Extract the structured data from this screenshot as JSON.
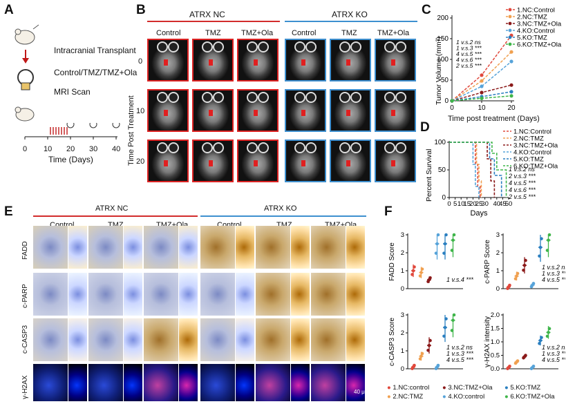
{
  "panels": {
    "A": "A",
    "B": "B",
    "C": "C",
    "D": "D",
    "E": "E",
    "F": "F"
  },
  "panelA": {
    "step1": "Intracranial Transplant",
    "step2": "Control/TMZ/TMZ+Ola",
    "step3": "MRI Scan",
    "timeline_ticks": [
      "0",
      "10",
      "20",
      "30",
      "40"
    ],
    "timeline_label": "Time (Days)"
  },
  "panelB": {
    "group_nc": "ATRX NC",
    "group_ko": "ATRX KO",
    "columns": [
      "Control",
      "TMZ",
      "TMZ+Ola",
      "Control",
      "TMZ",
      "TMZ+Ola"
    ],
    "rows": [
      "0",
      "10",
      "20"
    ],
    "ylabel": "Time Post Treatment"
  },
  "panelE": {
    "group_nc": "ATRX NC",
    "group_ko": "ATRX KO",
    "columns": [
      "Control",
      "TMZ",
      "TMZ+Ola",
      "Control",
      "TMZ",
      "TMZ+Ola"
    ],
    "rows": [
      "FADD",
      "c-PARP",
      "c-CASP3",
      "γ-H2AX"
    ],
    "scale": "40 μm"
  },
  "panelF_legend": [
    "1.NC:control",
    "2.NC:TMZ",
    "3.NC:TMZ+Ola",
    "4.KO:control",
    "5.KO:TMZ",
    "6.KO:TMZ+Ola"
  ],
  "colors": {
    "nc": "#d22b2b",
    "ko": "#3d8fcf",
    "s1": "#e0483c",
    "s2": "#f0a050",
    "s3": "#8b1a1a",
    "s4": "#56a3d9",
    "s5": "#2a7fc0",
    "s6": "#3fb54a"
  },
  "chart_data": [
    {
      "type": "line",
      "ylabel": "Tumor Volume (mm³)",
      "xlabel": "Time post treatment (Days)",
      "x": [
        0,
        10,
        20
      ],
      "ylim": [
        0,
        200
      ],
      "yticks": [
        0,
        50,
        100,
        150,
        200
      ],
      "series": [
        {
          "name": "1.NC:Control",
          "values": [
            0,
            62,
            158
          ]
        },
        {
          "name": "2.NC:TMZ",
          "values": [
            0,
            48,
            118
          ]
        },
        {
          "name": "3.NC:TMZ+Ola",
          "values": [
            0,
            20,
            38
          ]
        },
        {
          "name": "4.KO:Control",
          "values": [
            0,
            35,
            95
          ]
        },
        {
          "name": "5.KO:TMZ",
          "values": [
            0,
            10,
            22
          ]
        },
        {
          "name": "6.KO:TMZ+Ola",
          "values": [
            0,
            6,
            12
          ]
        }
      ],
      "stats": [
        [
          "1",
          "v.s.2",
          "ns"
        ],
        [
          "1",
          "v.s.3",
          "***"
        ],
        [
          "4",
          "v.s.5",
          "***"
        ],
        [
          "4",
          "v.s.6",
          "***"
        ],
        [
          "2",
          "v.s.5",
          "***"
        ]
      ]
    },
    {
      "type": "line",
      "ylabel": "Percent Survival",
      "xlabel": "Days",
      "xticks": [
        0,
        5,
        10,
        15,
        20,
        25,
        30,
        35,
        40,
        45,
        50
      ],
      "yticks": [
        0,
        50,
        100
      ],
      "series": [
        {
          "name": "1.NC:Control",
          "x": [
            0,
            20,
            22,
            24,
            26
          ],
          "values": [
            100,
            100,
            60,
            20,
            0
          ]
        },
        {
          "name": "2.NC:TMZ",
          "x": [
            0,
            21,
            23,
            25,
            27
          ],
          "values": [
            100,
            100,
            60,
            30,
            0
          ]
        },
        {
          "name": "3.NC:TMZ+Ola",
          "x": [
            0,
            29,
            32,
            35,
            38
          ],
          "values": [
            100,
            100,
            70,
            30,
            0
          ]
        },
        {
          "name": "4.KO:Control",
          "x": [
            0,
            18,
            20,
            22,
            25
          ],
          "values": [
            100,
            100,
            60,
            20,
            0
          ]
        },
        {
          "name": "5.KO:TMZ",
          "x": [
            0,
            30,
            34,
            38,
            44
          ],
          "values": [
            100,
            100,
            70,
            40,
            0
          ]
        },
        {
          "name": "6.KO:TMZ+Ola",
          "x": [
            0,
            33,
            36,
            40,
            48
          ],
          "values": [
            100,
            100,
            80,
            50,
            0
          ]
        }
      ],
      "stats": [
        [
          "1",
          "v.s.2",
          "ns"
        ],
        [
          "2",
          "v.s.3",
          "***"
        ],
        [
          "4",
          "v.s.5",
          "***"
        ],
        [
          "4",
          "v.s.6",
          "***"
        ],
        [
          "2",
          "v.s.5",
          "***"
        ]
      ]
    },
    {
      "type": "scatter",
      "ylabel": "FADD Score",
      "ylim": [
        0,
        3
      ],
      "yticks": [
        0,
        1,
        2,
        3
      ],
      "means": [
        1.0,
        0.9,
        0.5,
        2.5,
        2.5,
        2.7
      ],
      "stats": [
        [
          "1",
          "v.s.4",
          "***"
        ]
      ]
    },
    {
      "type": "scatter",
      "ylabel": "c-PARP Score",
      "ylim": [
        0,
        3
      ],
      "yticks": [
        0,
        1,
        2,
        3
      ],
      "means": [
        0.1,
        0.7,
        1.3,
        0.2,
        2.3,
        2.7
      ],
      "stats": [
        [
          "1",
          "v.s.2",
          "ns"
        ],
        [
          "1",
          "v.s.3",
          "***"
        ],
        [
          "4",
          "v.s.5",
          "***"
        ]
      ]
    },
    {
      "type": "scatter",
      "ylabel": "c-CASP3 Score",
      "ylim": [
        0,
        3
      ],
      "yticks": [
        0,
        1,
        2,
        3
      ],
      "means": [
        0.1,
        0.7,
        1.3,
        0.1,
        2.3,
        2.7
      ],
      "stats": [
        [
          "1",
          "v.s.2",
          "ns"
        ],
        [
          "1",
          "v.s.3",
          "***"
        ],
        [
          "4",
          "v.s.5",
          "***"
        ]
      ]
    },
    {
      "type": "scatter",
      "ylabel": "γ-H2AX intensity",
      "ylim": [
        0,
        2
      ],
      "yticks": [
        0.0,
        0.5,
        1.0,
        1.5,
        2.0
      ],
      "means": [
        0.05,
        0.25,
        0.45,
        0.05,
        1.05,
        1.35
      ],
      "stats": [
        [
          "1",
          "v.s.2",
          "ns"
        ],
        [
          "1",
          "v.s.3",
          "***"
        ],
        [
          "4",
          "v.s.5",
          "***"
        ]
      ]
    }
  ]
}
